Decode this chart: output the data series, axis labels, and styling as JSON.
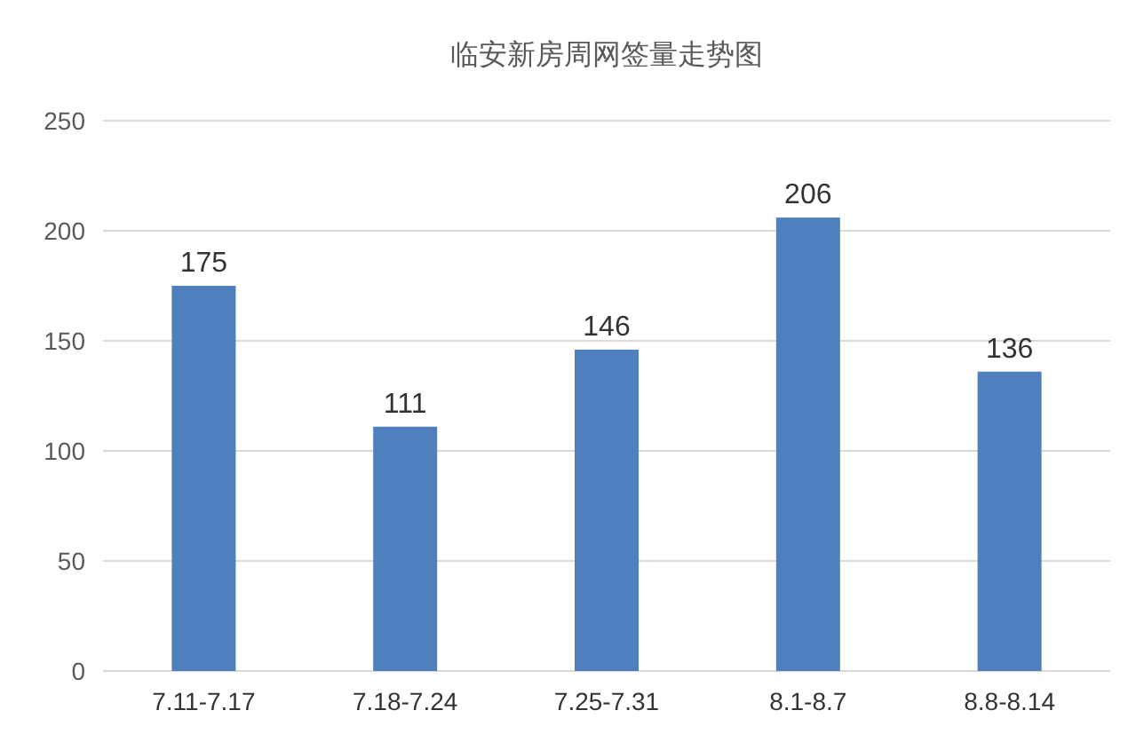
{
  "chart_data": {
    "type": "bar",
    "title": "临安新房周网签量走势图",
    "categories": [
      "7.11-7.17",
      "7.18-7.24",
      "7.25-7.31",
      "8.1-8.7",
      "8.8-8.14"
    ],
    "values": [
      175,
      111,
      146,
      206,
      136
    ],
    "color": "#4f7fbd",
    "ylim": [
      0,
      250
    ],
    "yticks": [
      0,
      50,
      100,
      150,
      200,
      250
    ],
    "grid": "y",
    "data_labels": true
  }
}
